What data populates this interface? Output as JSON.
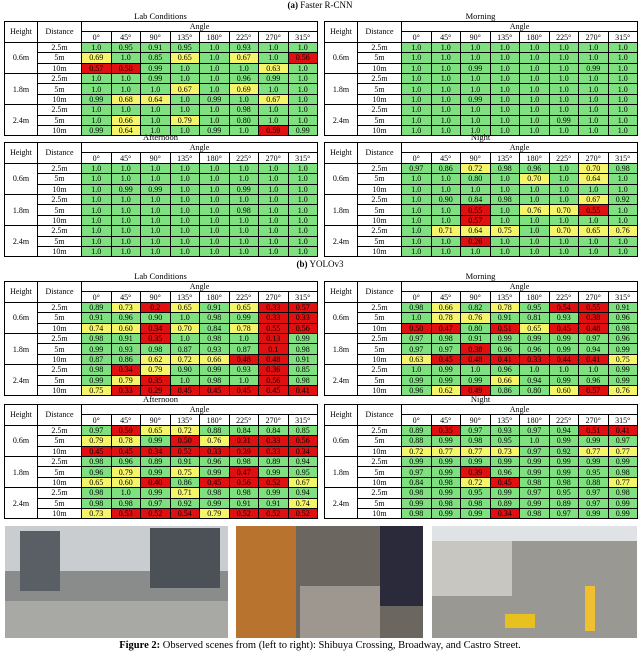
{
  "columns": {
    "height": "Height",
    "distance": "Distance",
    "angle": "Angle",
    "angles": [
      "0°",
      "45°",
      "90°",
      "135°",
      "180°",
      "225°",
      "270°",
      "315°"
    ],
    "heights": [
      "0.6m",
      "1.8m",
      "2.4m"
    ],
    "distances": [
      "2.5m",
      "5m",
      "10m"
    ]
  },
  "sections": [
    {
      "label": "(a)",
      "name": "Faster R-CNN",
      "tables": [
        {
          "title": "Lab Conditions",
          "values": [
            [
              "1.0",
              "0.95",
              "0.91",
              "0.95",
              "1.0",
              "0.93",
              "1.0",
              "1.0"
            ],
            [
              "0.69",
              "1.0",
              "0.85",
              "0.65",
              "1.0",
              "0.67",
              "1.0",
              "0.56"
            ],
            [
              "0.57",
              "0.58",
              "0.99",
              "1.0",
              "1.0",
              "1.0",
              "0.63",
              "1.0"
            ],
            [
              "1.0",
              "1.0",
              "0.99",
              "1.0",
              "1.0",
              "0.96",
              "0.99",
              "1.0"
            ],
            [
              "1.0",
              "1.0",
              "1.0",
              "0.67",
              "1.0",
              "0.69",
              "1.0",
              "1.0"
            ],
            [
              "0.99",
              "0.68",
              "0.64",
              "1.0",
              "0.99",
              "1.0",
              "0.67",
              "1.0"
            ],
            [
              "1.0",
              "1.0",
              "1.0",
              "1.0",
              "1.0",
              "0.98",
              "1.0",
              "1.0"
            ],
            [
              "1.0",
              "0.66",
              "1.0",
              "0.79",
              "1.0",
              "0.80",
              "1.0",
              "1.0"
            ],
            [
              "0.99",
              "0.64",
              "1.0",
              "1.0",
              "0.99",
              "1.0",
              "0.59",
              "0.99"
            ]
          ]
        },
        {
          "title": "Morning",
          "values": [
            [
              "1.0",
              "1.0",
              "1.0",
              "1.0",
              "1.0",
              "1.0",
              "1.0",
              "1.0"
            ],
            [
              "1.0",
              "1.0",
              "1.0",
              "1.0",
              "1.0",
              "1.0",
              "1.0",
              "1.0"
            ],
            [
              "1.0",
              "1.0",
              "0.99",
              "1.0",
              "1.0",
              "1.0",
              "0.99",
              "1.0"
            ],
            [
              "1.0",
              "1.0",
              "1.0",
              "1.0",
              "1.0",
              "1.0",
              "1.0",
              "1.0"
            ],
            [
              "1.0",
              "1.0",
              "1.0",
              "1.0",
              "1.0",
              "1.0",
              "1.0",
              "1.0"
            ],
            [
              "1.0",
              "1.0",
              "0.99",
              "1.0",
              "1.0",
              "1.0",
              "1.0",
              "1.0"
            ],
            [
              "1.0",
              "1.0",
              "1.0",
              "1.0",
              "1.0",
              "1.0",
              "1.0",
              "1.0"
            ],
            [
              "1.0",
              "1.0",
              "1.0",
              "1.0",
              "1.0",
              "0.99",
              "1.0",
              "1.0"
            ],
            [
              "1.0",
              "1.0",
              "1.0",
              "1.0",
              "1.0",
              "1.0",
              "1.0",
              "1.0"
            ]
          ]
        },
        {
          "title": "Afternoon",
          "values": [
            [
              "1.0",
              "1.0",
              "1.0",
              "1.0",
              "1.0",
              "1.0",
              "1.0",
              "1.0"
            ],
            [
              "1.0",
              "1.0",
              "1.0",
              "1.0",
              "1.0",
              "1.0",
              "1.0",
              "1.0"
            ],
            [
              "1.0",
              "0.99",
              "0.99",
              "1.0",
              "1.0",
              "0.99",
              "1.0",
              "1.0"
            ],
            [
              "1.0",
              "1.0",
              "1.0",
              "1.0",
              "1.0",
              "1.0",
              "1.0",
              "1.0"
            ],
            [
              "1.0",
              "1.0",
              "1.0",
              "1.0",
              "1.0",
              "0.98",
              "1.0",
              "1.0"
            ],
            [
              "1.0",
              "1.0",
              "1.0",
              "1.0",
              "1.0",
              "1.0",
              "1.0",
              "1.0"
            ],
            [
              "1.0",
              "1.0",
              "1.0",
              "1.0",
              "1.0",
              "1.0",
              "1.0",
              "1.0"
            ],
            [
              "1.0",
              "1.0",
              "1.0",
              "1.0",
              "1.0",
              "1.0",
              "1.0",
              "1.0"
            ],
            [
              "1.0",
              "1.0",
              "1.0",
              "1.0",
              "1.0",
              "1.0",
              "1.0",
              "1.0"
            ]
          ]
        },
        {
          "title": "Night",
          "values": [
            [
              "0.97",
              "0.86",
              "0.72",
              "0.98",
              "0.96",
              "1.0",
              "0.70",
              "0.98"
            ],
            [
              "1.0",
              "1.0",
              "0.80",
              "1.0",
              "0.70",
              "1.0",
              "0.64",
              "1.0"
            ],
            [
              "1.0",
              "1.0",
              "1.0",
              "1.0",
              "1.0",
              "1.0",
              "1.0",
              "1.0"
            ],
            [
              "1.0",
              "0.90",
              "0.84",
              "0.98",
              "1.0",
              "1.0",
              "0.67",
              "0.92"
            ],
            [
              "1.0",
              "1.0",
              "0.55",
              "1.0",
              "0.76",
              "0.70",
              "0.55",
              "1.0"
            ],
            [
              "1.0",
              "1.0",
              "0.57",
              "1.0",
              "1.0",
              "1.0",
              "1.0",
              "1.0"
            ],
            [
              "1.0",
              "0.71",
              "0.64",
              "0.75",
              "1.0",
              "0.70",
              "0.65",
              "0.76"
            ],
            [
              "1.0",
              "1.0",
              "0.26",
              "1.0",
              "1.0",
              "1.0",
              "1.0",
              "1.0"
            ],
            [
              "1.0",
              "1.0",
              "1.0",
              "1.0",
              "1.0",
              "1.0",
              "1.0",
              "1.0"
            ]
          ]
        }
      ]
    },
    {
      "label": "(b)",
      "name": "YOLOv3",
      "tables": [
        {
          "title": "Lab Conditions",
          "values": [
            [
              "0.89",
              "0.73",
              "0.2",
              "0.65",
              "0.91",
              "0.65",
              "0.33",
              "0.57"
            ],
            [
              "0.91",
              "0.96",
              "0.90",
              "1.0",
              "0.98",
              "0.99",
              "0.33",
              "0.33"
            ],
            [
              "0.74",
              "0.60",
              "0.34",
              "0.70",
              "0.84",
              "0.78",
              "0.55",
              "0.56"
            ],
            [
              "0.98",
              "0.91",
              "0.35",
              "1.0",
              "0.98",
              "1.0",
              "0.13",
              "0.99"
            ],
            [
              "0.99",
              "0.93",
              "0.98",
              "0.87",
              "0.93",
              "0.87",
              "0.1",
              "0.98"
            ],
            [
              "0.87",
              "0.86",
              "0.62",
              "0.72",
              "0.66",
              "0.48",
              "0.48",
              "0.91"
            ],
            [
              "0.98",
              "0.34",
              "0.79",
              "0.90",
              "0.99",
              "0.93",
              "0.36",
              "0.85"
            ],
            [
              "0.99",
              "0.79",
              "0.35",
              "1.0",
              "0.98",
              "1.0",
              "0.56",
              "0.98"
            ],
            [
              "0.75",
              "0.33",
              "0.29",
              "0.45",
              "0.45",
              "0.45",
              "0.45",
              "0.41"
            ]
          ]
        },
        {
          "title": "Morning",
          "values": [
            [
              "0.98",
              "0.66",
              "0.82",
              "0.78",
              "0.95",
              "0.54",
              "0.55",
              "0.91"
            ],
            [
              "1.0",
              "0.78",
              "0.76",
              "0.91",
              "0.81",
              "0.93",
              "0.38",
              "0.96"
            ],
            [
              "0.50",
              "0.47",
              "0.80",
              "0.51",
              "0.65",
              "0.45",
              "0.48",
              "0.98"
            ],
            [
              "0.97",
              "0.98",
              "0.91",
              "0.99",
              "0.99",
              "0.99",
              "0.97",
              "0.96"
            ],
            [
              "0.97",
              "0.97",
              "0.38",
              "0.96",
              "0.96",
              "0.99",
              "0.94",
              "0.99"
            ],
            [
              "0.63",
              "0.45",
              "0.48",
              "0.41",
              "0.33",
              "0.44",
              "0.41",
              "0.75"
            ],
            [
              "1.0",
              "0.99",
              "1.0",
              "0.96",
              "1.0",
              "1.0",
              "1.0",
              "0.99"
            ],
            [
              "0.99",
              "0.99",
              "0.99",
              "0.66",
              "0.94",
              "0.99",
              "0.96",
              "0.99"
            ],
            [
              "0.96",
              "0.62",
              "0.49",
              "0.86",
              "0.80",
              "0.60",
              "0.57",
              "0.76"
            ]
          ]
        },
        {
          "title": "Afternoon",
          "values": [
            [
              "0.97",
              "0.59",
              "0.65",
              "0.72",
              "0.88",
              "0.84",
              "0.84",
              "0.85"
            ],
            [
              "0.79",
              "0.78",
              "0.99",
              "0.50",
              "0.76",
              "0.31",
              "0.33",
              "0.56"
            ],
            [
              "0.45",
              "0.45",
              "0.34",
              "0.52",
              "0.33",
              "0.39",
              "0.33",
              "0.34"
            ],
            [
              "0.98",
              "0.96",
              "0.89",
              "0.91",
              "0.96",
              "0.98",
              "0.89",
              "0.94"
            ],
            [
              "0.96",
              "0.79",
              "0.99",
              "0.75",
              "0.99",
              "0.47",
              "0.99",
              "0.95"
            ],
            [
              "0.65",
              "0.60",
              "0.40",
              "0.86",
              "0.45",
              "0.56",
              "0.52",
              "0.67"
            ],
            [
              "0.98",
              "1.0",
              "0.99",
              "0.71",
              "0.98",
              "0.98",
              "0.99",
              "0.94"
            ],
            [
              "0.98",
              "0.98",
              "0.97",
              "0.92",
              "0.99",
              "0.91",
              "0.91",
              "0.74"
            ],
            [
              "0.73",
              "0.53",
              "0.52",
              "0.54",
              "0.79",
              "0.52",
              "0.52",
              "0.52"
            ]
          ]
        },
        {
          "title": "Night",
          "values": [
            [
              "0.89",
              "0.35",
              "0.97",
              "0.93",
              "0.97",
              "0.94",
              "0.51",
              "0.41"
            ],
            [
              "0.88",
              "0.99",
              "0.98",
              "0.95",
              "1.0",
              "0.99",
              "0.99",
              "0.97"
            ],
            [
              "0.72",
              "0.77",
              "0.77",
              "0.73",
              "0.97",
              "0.92",
              "0.77",
              "0.77"
            ],
            [
              "0.99",
              "0.99",
              "0.99",
              "0.99",
              "0.99",
              "0.99",
              "0.99",
              "0.99"
            ],
            [
              "0.97",
              "0.99",
              "0.39",
              "0.96",
              "0.99",
              "0.99",
              "0.95",
              "0.98"
            ],
            [
              "0.84",
              "0.98",
              "0.72",
              "0.45",
              "0.98",
              "0.98",
              "0.88",
              "0.77"
            ],
            [
              "0.98",
              "0.99",
              "0.95",
              "0.99",
              "0.97",
              "0.95",
              "0.97",
              "0.98"
            ],
            [
              "0.99",
              "0.98",
              "0.98",
              "0.89",
              "0.99",
              "0.89",
              "0.97",
              "0.99"
            ],
            [
              "0.98",
              "0.99",
              "0.99",
              "0.34",
              "0.98",
              "0.97",
              "0.99",
              "0.99"
            ]
          ]
        }
      ]
    }
  ],
  "caption": {
    "label": "Figure 2:",
    "text": "Observed scenes from (left to right): Shibuya Crossing, Broadway, and Castro Street."
  }
}
